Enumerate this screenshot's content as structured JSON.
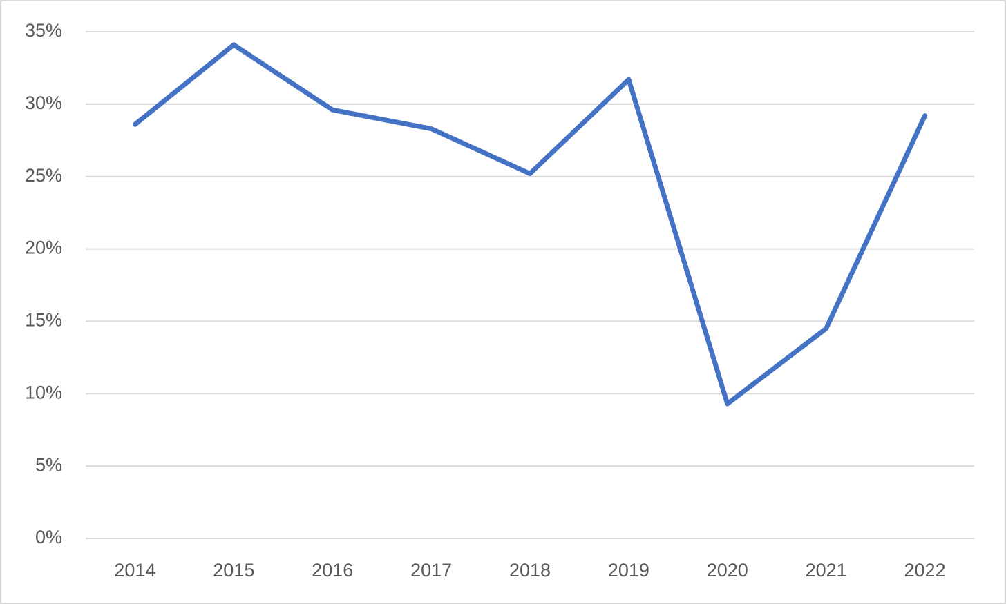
{
  "chart_data": {
    "type": "line",
    "categories": [
      "2014",
      "2015",
      "2016",
      "2017",
      "2018",
      "2019",
      "2020",
      "2021",
      "2022"
    ],
    "series": [
      {
        "color": "#4472c4",
        "values": [
          28.6,
          34.1,
          29.6,
          28.3,
          25.2,
          31.7,
          9.3,
          14.5,
          29.2
        ]
      }
    ],
    "ylim": [
      0,
      35
    ],
    "yticks": [
      {
        "value": 0,
        "label": "0%"
      },
      {
        "value": 5,
        "label": "5%"
      },
      {
        "value": 10,
        "label": "10%"
      },
      {
        "value": 15,
        "label": "15%"
      },
      {
        "value": 20,
        "label": "20%"
      },
      {
        "value": 25,
        "label": "25%"
      },
      {
        "value": 30,
        "label": "30%"
      },
      {
        "value": 35,
        "label": "35%"
      }
    ],
    "grid": true
  }
}
